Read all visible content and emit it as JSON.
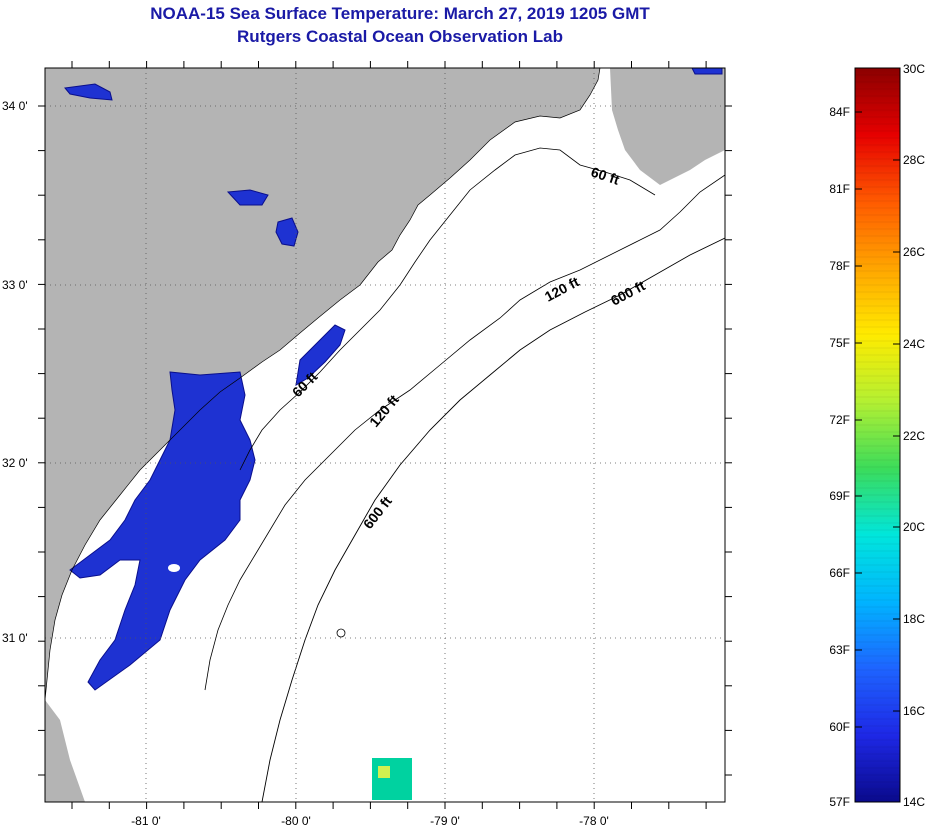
{
  "header": {
    "title": "NOAA-15 Sea Surface Temperature:  March 27, 2019 1205 GMT",
    "subtitle": "Rutgers Coastal Ocean Observation Lab"
  },
  "map": {
    "lat_ticks": [
      "34 0'",
      "33 0'",
      "32 0'",
      "31 0'"
    ],
    "lon_ticks": [
      "-81 0'",
      "-80 0'",
      "-79 0'",
      "-78 0'"
    ],
    "depth_contours": [
      "60 ft",
      "120 ft",
      "600 ft",
      "60 ft",
      "120 ft",
      "600 ft"
    ],
    "colors": {
      "land": "#b4b4b4",
      "cold_water": "#1e32d2",
      "deep_blue": "#0a0f8c",
      "cloud": "#ffffff"
    }
  },
  "colorbar": {
    "fahrenheit_labels": [
      "84F",
      "81F",
      "78F",
      "75F",
      "72F",
      "69F",
      "66F",
      "63F",
      "60F",
      "57F"
    ],
    "celsius_labels": [
      "30C",
      "28C",
      "26C",
      "24C",
      "22C",
      "20C",
      "18C",
      "16C",
      "14C"
    ],
    "gradient_stops": [
      "#8b0000",
      "#e60000",
      "#ff5a00",
      "#ffa500",
      "#ffeb00",
      "#b4f032",
      "#3cdc5a",
      "#00e6dc",
      "#00b4ff",
      "#1e64ff",
      "#1e28e6",
      "#0a0a8c"
    ]
  }
}
